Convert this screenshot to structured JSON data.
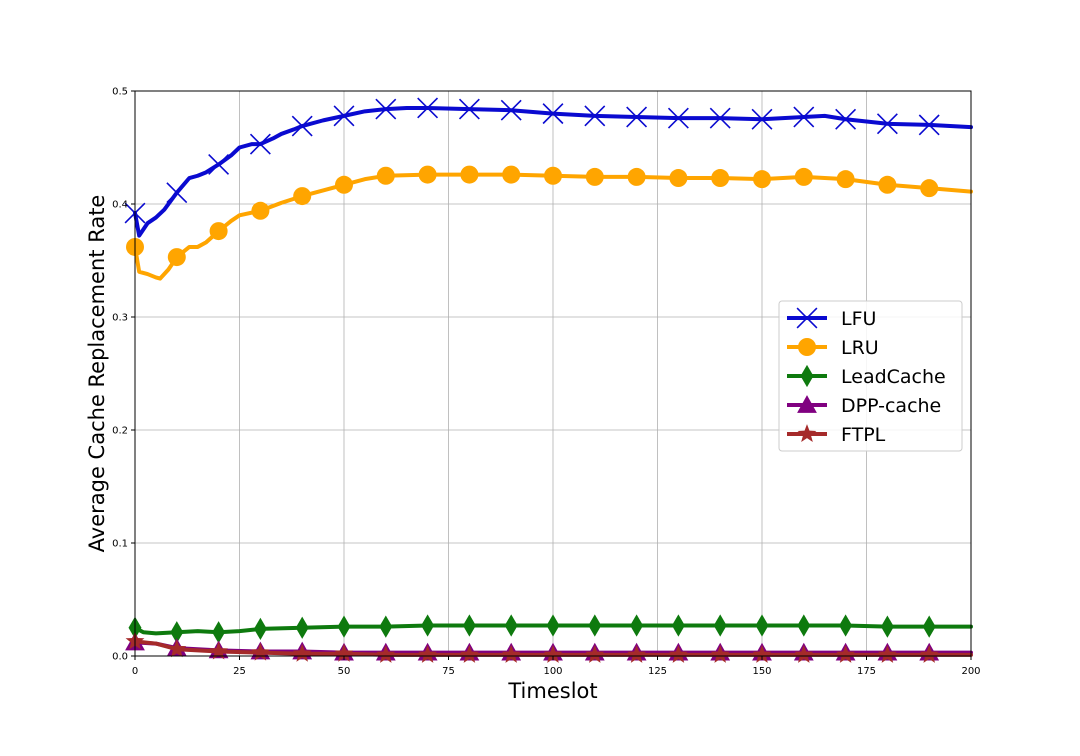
{
  "chart_data": {
    "type": "line",
    "xlabel": "Timeslot",
    "ylabel": "Average Cache Replacement Rate",
    "xlim": [
      0,
      200
    ],
    "ylim": [
      0,
      0.5
    ],
    "xticks": [
      "0",
      "25",
      "50",
      "75",
      "100",
      "125",
      "150",
      "175",
      "200"
    ],
    "yticks": [
      "0.0",
      "0.1",
      "0.2",
      "0.3",
      "0.4",
      "0.5"
    ],
    "grid": true,
    "legend_position": "center-right",
    "series": [
      {
        "name": "LFU",
        "color": "#0a0ad0",
        "marker": "x",
        "x": [
          0,
          1,
          3,
          5,
          7,
          10,
          13,
          15,
          17,
          20,
          23,
          25,
          28,
          30,
          33,
          35,
          38,
          40,
          45,
          50,
          55,
          60,
          65,
          70,
          80,
          90,
          100,
          110,
          120,
          130,
          140,
          150,
          155,
          160,
          165,
          170,
          175,
          180,
          190,
          200
        ],
        "y": [
          0.392,
          0.372,
          0.383,
          0.388,
          0.395,
          0.41,
          0.423,
          0.425,
          0.428,
          0.435,
          0.443,
          0.45,
          0.453,
          0.453,
          0.458,
          0.462,
          0.466,
          0.469,
          0.474,
          0.478,
          0.482,
          0.484,
          0.485,
          0.485,
          0.484,
          0.483,
          0.48,
          0.478,
          0.477,
          0.476,
          0.476,
          0.475,
          0.476,
          0.477,
          0.478,
          0.475,
          0.473,
          0.471,
          0.47,
          0.468
        ]
      },
      {
        "name": "LRU",
        "color": "#ffa500",
        "marker": "o",
        "x": [
          0,
          1,
          3,
          5,
          6,
          8,
          10,
          13,
          15,
          17,
          20,
          23,
          25,
          30,
          35,
          40,
          45,
          50,
          55,
          60,
          70,
          80,
          90,
          100,
          110,
          120,
          130,
          140,
          150,
          160,
          170,
          180,
          190,
          200
        ],
        "y": [
          0.362,
          0.34,
          0.338,
          0.335,
          0.334,
          0.342,
          0.353,
          0.362,
          0.362,
          0.366,
          0.376,
          0.385,
          0.39,
          0.394,
          0.401,
          0.407,
          0.412,
          0.417,
          0.422,
          0.425,
          0.426,
          0.426,
          0.426,
          0.425,
          0.424,
          0.424,
          0.423,
          0.423,
          0.422,
          0.424,
          0.422,
          0.417,
          0.414,
          0.411
        ]
      },
      {
        "name": "LeadCache",
        "color": "#0e7a0e",
        "marker": "d",
        "x": [
          0,
          2,
          5,
          10,
          15,
          20,
          25,
          30,
          40,
          50,
          60,
          70,
          80,
          90,
          100,
          110,
          120,
          130,
          140,
          150,
          160,
          170,
          180,
          190,
          200
        ],
        "y": [
          0.025,
          0.021,
          0.02,
          0.021,
          0.022,
          0.021,
          0.022,
          0.024,
          0.025,
          0.026,
          0.026,
          0.027,
          0.027,
          0.027,
          0.027,
          0.027,
          0.027,
          0.027,
          0.027,
          0.027,
          0.027,
          0.027,
          0.026,
          0.026,
          0.026
        ]
      },
      {
        "name": "DPP-cache",
        "color": "#800080",
        "marker": "^",
        "x": [
          0,
          5,
          10,
          20,
          30,
          40,
          50,
          60,
          70,
          80,
          90,
          100,
          110,
          120,
          130,
          140,
          150,
          160,
          170,
          180,
          190,
          200
        ],
        "y": [
          0.012,
          0.011,
          0.007,
          0.005,
          0.004,
          0.004,
          0.003,
          0.003,
          0.003,
          0.003,
          0.003,
          0.003,
          0.003,
          0.003,
          0.003,
          0.003,
          0.003,
          0.003,
          0.003,
          0.003,
          0.003,
          0.003
        ]
      },
      {
        "name": "FTPL",
        "color": "#a52a2a",
        "marker": "*",
        "x": [
          0,
          5,
          10,
          20,
          30,
          40,
          50,
          60,
          70,
          80,
          90,
          100,
          110,
          120,
          130,
          140,
          150,
          160,
          170,
          180,
          190,
          200
        ],
        "y": [
          0.013,
          0.011,
          0.006,
          0.004,
          0.003,
          0.002,
          0.002,
          0.001,
          0.001,
          0.001,
          0.001,
          0.001,
          0.001,
          0.001,
          0.001,
          0.001,
          0.001,
          0.001,
          0.001,
          0.001,
          0.001,
          0.001
        ]
      }
    ]
  }
}
